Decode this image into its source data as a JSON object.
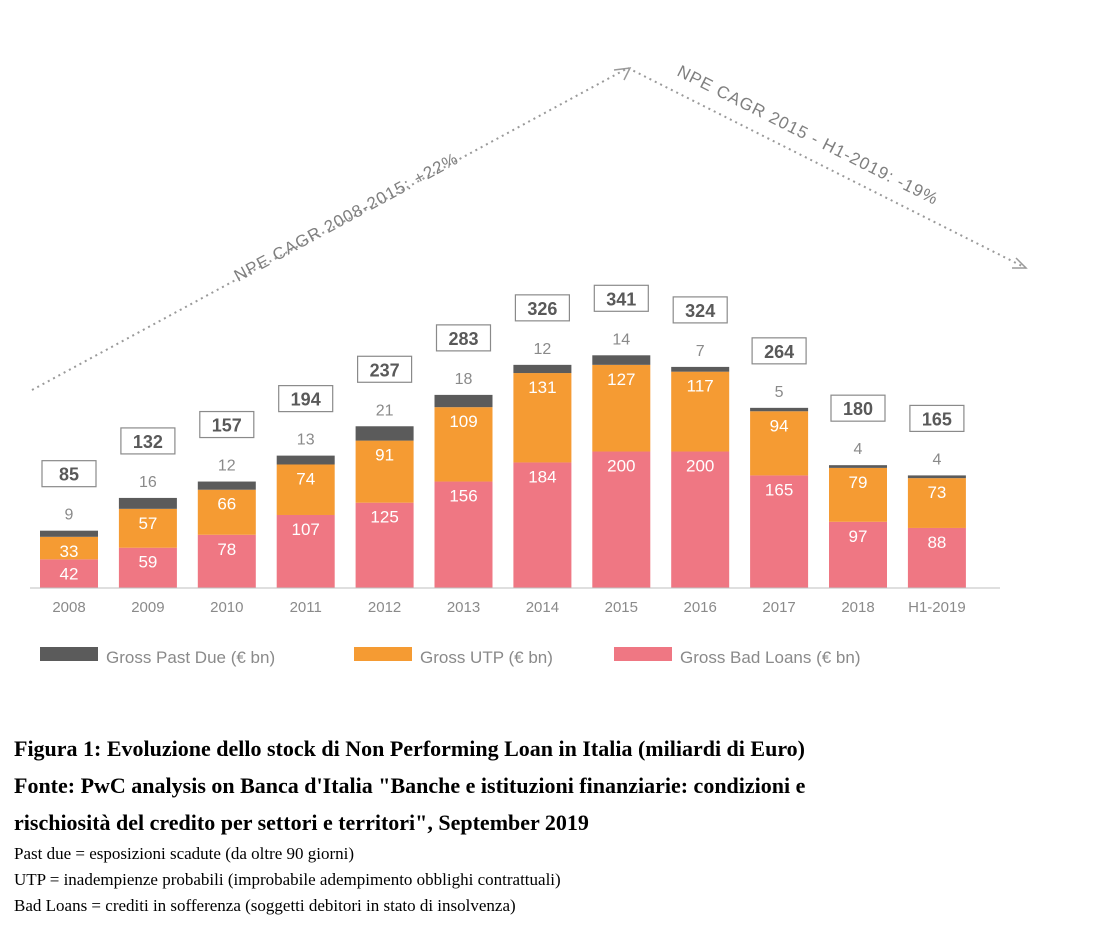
{
  "chart_data": {
    "type": "bar",
    "stacked": true,
    "categories": [
      "2008",
      "2009",
      "2010",
      "2011",
      "2012",
      "2013",
      "2014",
      "2015",
      "2016",
      "2017",
      "2018",
      "H1-2019"
    ],
    "series": [
      {
        "name": "Gross Bad Loans (€ bn)",
        "color": "#ef7783",
        "values": [
          42,
          59,
          78,
          107,
          125,
          156,
          184,
          200,
          200,
          165,
          97,
          88
        ]
      },
      {
        "name": "Gross UTP (€ bn)",
        "color": "#f59b33",
        "values": [
          33,
          57,
          66,
          74,
          91,
          109,
          131,
          127,
          117,
          94,
          79,
          73
        ]
      },
      {
        "name": "Gross Past Due (€ bn)",
        "color": "#5b5b5b",
        "values": [
          9,
          16,
          12,
          13,
          21,
          18,
          12,
          14,
          7,
          5,
          4,
          4
        ]
      }
    ],
    "totals": [
      85,
      132,
      157,
      194,
      237,
      283,
      326,
      341,
      324,
      264,
      180,
      165
    ],
    "annotations": [
      "NPE CAGR 2008-2015: +22%",
      "NPE CAGR 2015 - H1-2019: -19%"
    ],
    "legend_position": "bottom-left",
    "grid": false
  },
  "caption": {
    "line1": "Figura 1: Evoluzione dello stock di Non Performing Loan in Italia (miliardi di Euro)",
    "line2": "Fonte: PwC analysis on Banca d'Italia \"Banche e istituzioni finanziarie: condizioni e",
    "line3": "rischiosità del credito per settori e territori\", September 2019",
    "note1": "Past due = esposizioni scadute (da oltre 90 giorni)",
    "note2": "UTP = inadempienze probabili (improbabile adempimento obblighi contrattuali)",
    "note3": "Bad Loans = crediti in sofferenza (soggetti debitori in stato di insolvenza)"
  }
}
